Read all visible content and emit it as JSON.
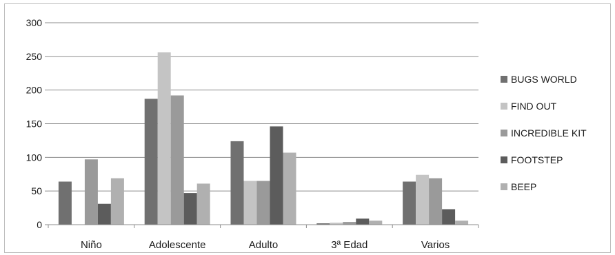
{
  "chart_data": {
    "type": "bar",
    "categories": [
      "Niño",
      "Adolescente",
      "Adulto",
      "3ª Edad",
      "Varios"
    ],
    "series": [
      {
        "name": "BUGS WORLD",
        "color": "#707070",
        "values": [
          64,
          187,
          124,
          2,
          64
        ]
      },
      {
        "name": "FIND OUT",
        "color": "#c4c4c4",
        "values": [
          0,
          256,
          65,
          3,
          74
        ]
      },
      {
        "name": "INCREDIBLE KIT",
        "color": "#9a9a9a",
        "values": [
          97,
          192,
          65,
          4,
          69
        ]
      },
      {
        "name": "FOOTSTEP",
        "color": "#5c5c5c",
        "values": [
          31,
          47,
          146,
          9,
          23
        ]
      },
      {
        "name": "BEEP",
        "color": "#b0b0b0",
        "values": [
          69,
          61,
          107,
          6,
          6
        ]
      }
    ],
    "yticks": [
      "0",
      "50",
      "100",
      "150",
      "200",
      "250",
      "300"
    ],
    "ylim": [
      0,
      300
    ],
    "grid": true,
    "legend_position": "right"
  }
}
